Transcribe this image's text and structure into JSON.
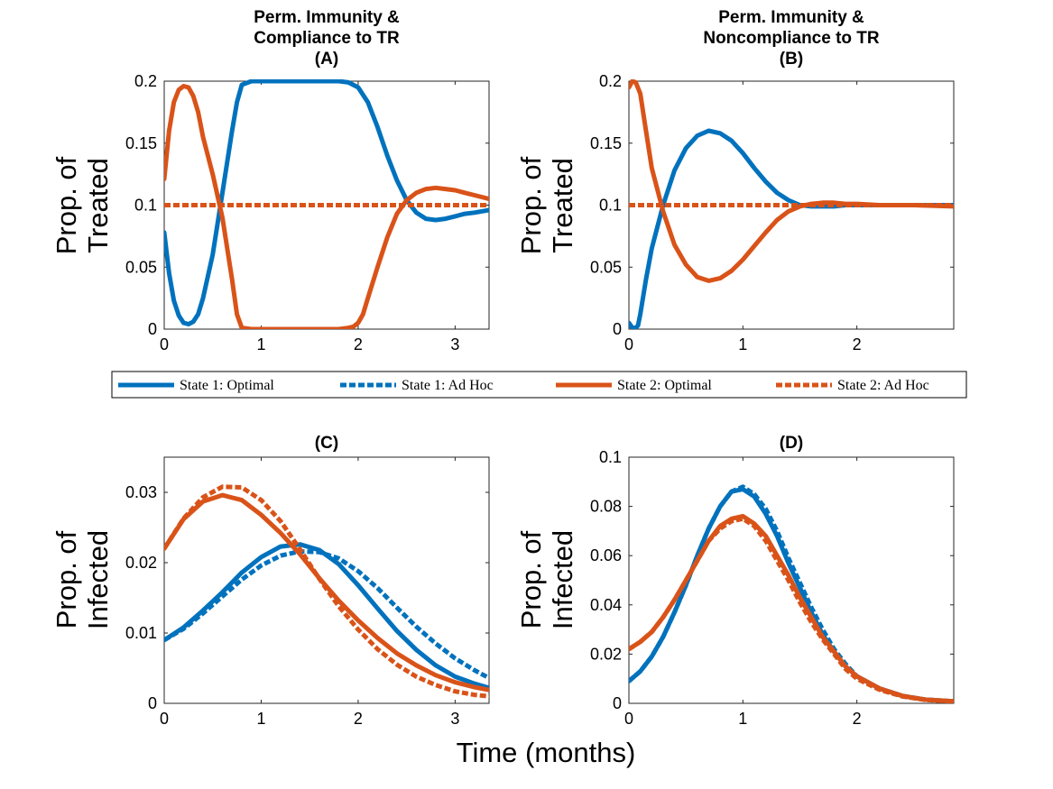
{
  "figure": {
    "xlabel": "Time (months)"
  },
  "legend": {
    "entries": [
      {
        "label": "State 1:  Optimal",
        "color": "#0072BD",
        "dash": false
      },
      {
        "label": "State 1:  Ad Hoc",
        "color": "#0072BD",
        "dash": true
      },
      {
        "label": "State 2:  Optimal",
        "color": "#D95319",
        "dash": false
      },
      {
        "label": "State 2:  Ad Hoc",
        "color": "#D95319",
        "dash": true
      }
    ]
  },
  "chart_data": [
    {
      "id": "A",
      "type": "line",
      "title": [
        "Perm. Immunity &",
        "Compliance to TR",
        "(A)"
      ],
      "ylabel": [
        "Prop. of",
        "Treated"
      ],
      "xlim": [
        0,
        3.35
      ],
      "ylim": [
        0,
        0.2
      ],
      "xticks": [
        0,
        1,
        2,
        3
      ],
      "yticks": [
        0,
        0.05,
        0.1,
        0.15,
        0.2
      ],
      "yticklabels": [
        "0",
        "0.05",
        "0.1",
        "0.15",
        "0.2"
      ],
      "series": [
        {
          "name": "State 1:  Optimal",
          "color": "#0072BD",
          "dash": false,
          "x": [
            0,
            0.05,
            0.1,
            0.15,
            0.2,
            0.25,
            0.3,
            0.35,
            0.4,
            0.5,
            0.6,
            0.7,
            0.75,
            0.8,
            0.9,
            1.0,
            1.5,
            1.8,
            1.9,
            2.0,
            2.1,
            2.2,
            2.3,
            2.4,
            2.5,
            2.6,
            2.7,
            2.8,
            2.9,
            3.0,
            3.1,
            3.2,
            3.35
          ],
          "y": [
            0.078,
            0.045,
            0.023,
            0.011,
            0.005,
            0.004,
            0.006,
            0.012,
            0.025,
            0.06,
            0.11,
            0.16,
            0.183,
            0.197,
            0.2,
            0.2,
            0.2,
            0.2,
            0.199,
            0.195,
            0.183,
            0.163,
            0.14,
            0.12,
            0.104,
            0.094,
            0.089,
            0.088,
            0.089,
            0.091,
            0.093,
            0.094,
            0.096
          ]
        },
        {
          "name": "State 1:  Ad Hoc",
          "color": "#0072BD",
          "dash": true,
          "x": [
            0,
            3.35
          ],
          "y": [
            0.1,
            0.1
          ]
        },
        {
          "name": "State 2:  Optimal",
          "color": "#D95319",
          "dash": false,
          "x": [
            0,
            0.05,
            0.1,
            0.15,
            0.2,
            0.25,
            0.3,
            0.35,
            0.4,
            0.5,
            0.6,
            0.7,
            0.75,
            0.8,
            0.9,
            1.0,
            1.5,
            1.8,
            1.9,
            1.95,
            2.0,
            2.05,
            2.1,
            2.2,
            2.3,
            2.4,
            2.5,
            2.6,
            2.7,
            2.8,
            2.9,
            3.0,
            3.1,
            3.2,
            3.35
          ],
          "y": [
            0.121,
            0.16,
            0.183,
            0.193,
            0.196,
            0.195,
            0.188,
            0.175,
            0.155,
            0.125,
            0.09,
            0.04,
            0.012,
            0.001,
            0,
            0,
            0,
            0,
            0.001,
            0.002,
            0.005,
            0.012,
            0.025,
            0.05,
            0.074,
            0.093,
            0.104,
            0.11,
            0.113,
            0.114,
            0.113,
            0.112,
            0.11,
            0.108,
            0.105
          ]
        },
        {
          "name": "State 2:  Ad Hoc",
          "color": "#D95319",
          "dash": true,
          "x": [
            0,
            3.35
          ],
          "y": [
            0.1,
            0.1
          ]
        }
      ]
    },
    {
      "id": "B",
      "type": "line",
      "title": [
        "Perm. Immunity &",
        "Noncompliance to TR",
        "(B)"
      ],
      "ylabel": [
        "Prop. of",
        "Treated"
      ],
      "xlim": [
        0,
        2.85
      ],
      "ylim": [
        0,
        0.2
      ],
      "xticks": [
        0,
        1,
        2
      ],
      "yticks": [
        0,
        0.05,
        0.1,
        0.15,
        0.2
      ],
      "yticklabels": [
        "0",
        "0.05",
        "0.1",
        "0.15",
        "0.2"
      ],
      "series": [
        {
          "name": "State 1:  Optimal",
          "color": "#0072BD",
          "dash": false,
          "x": [
            0,
            0.03,
            0.06,
            0.08,
            0.1,
            0.15,
            0.2,
            0.3,
            0.4,
            0.5,
            0.6,
            0.7,
            0.8,
            0.9,
            1.0,
            1.1,
            1.2,
            1.3,
            1.4,
            1.5,
            1.6,
            1.7,
            1.8,
            1.9,
            2.0,
            2.2,
            2.5,
            2.85
          ],
          "y": [
            0.005,
            0.001,
            0.001,
            0.003,
            0.012,
            0.04,
            0.065,
            0.1,
            0.128,
            0.146,
            0.156,
            0.16,
            0.158,
            0.152,
            0.142,
            0.13,
            0.119,
            0.11,
            0.104,
            0.1,
            0.099,
            0.099,
            0.099,
            0.1,
            0.1,
            0.1,
            0.1,
            0.1
          ]
        },
        {
          "name": "State 1:  Ad Hoc",
          "color": "#0072BD",
          "dash": true,
          "x": [
            0,
            2.85
          ],
          "y": [
            0.1,
            0.1
          ]
        },
        {
          "name": "State 2:  Optimal",
          "color": "#D95319",
          "dash": false,
          "x": [
            0,
            0.03,
            0.06,
            0.1,
            0.15,
            0.2,
            0.3,
            0.4,
            0.5,
            0.6,
            0.7,
            0.8,
            0.9,
            1.0,
            1.1,
            1.2,
            1.3,
            1.4,
            1.5,
            1.6,
            1.7,
            1.8,
            1.9,
            2.0,
            2.2,
            2.5,
            2.85
          ],
          "y": [
            0.195,
            0.2,
            0.199,
            0.19,
            0.16,
            0.13,
            0.095,
            0.068,
            0.052,
            0.042,
            0.039,
            0.041,
            0.047,
            0.056,
            0.067,
            0.078,
            0.088,
            0.095,
            0.099,
            0.101,
            0.102,
            0.102,
            0.101,
            0.101,
            0.1,
            0.1,
            0.099
          ]
        },
        {
          "name": "State 2:  Ad Hoc",
          "color": "#D95319",
          "dash": true,
          "x": [
            0,
            2.85
          ],
          "y": [
            0.1,
            0.1
          ]
        }
      ]
    },
    {
      "id": "C",
      "type": "line",
      "title": [
        "(C)"
      ],
      "ylabel": [
        "Prop. of",
        "Infected"
      ],
      "xlim": [
        0,
        3.35
      ],
      "ylim": [
        0,
        0.035
      ],
      "xticks": [
        0,
        1,
        2,
        3
      ],
      "yticks": [
        0,
        0.01,
        0.02,
        0.03
      ],
      "yticklabels": [
        "0",
        "0.01",
        "0.02",
        "0.03"
      ],
      "series": [
        {
          "name": "State 1:  Optimal",
          "color": "#0072BD",
          "dash": false,
          "x": [
            0,
            0.2,
            0.4,
            0.6,
            0.8,
            1.0,
            1.2,
            1.4,
            1.6,
            1.8,
            2.0,
            2.2,
            2.4,
            2.6,
            2.8,
            3.0,
            3.2,
            3.35
          ],
          "y": [
            0.009,
            0.0108,
            0.0132,
            0.0158,
            0.0186,
            0.0208,
            0.0223,
            0.0226,
            0.0218,
            0.0198,
            0.0168,
            0.0135,
            0.0103,
            0.0076,
            0.0054,
            0.0038,
            0.0028,
            0.0022
          ]
        },
        {
          "name": "State 1:  Ad Hoc",
          "color": "#0072BD",
          "dash": true,
          "x": [
            0,
            0.2,
            0.4,
            0.6,
            0.8,
            1.0,
            1.2,
            1.4,
            1.6,
            1.8,
            2.0,
            2.2,
            2.4,
            2.6,
            2.8,
            3.0,
            3.2,
            3.35
          ],
          "y": [
            0.009,
            0.0106,
            0.0128,
            0.0152,
            0.0176,
            0.0196,
            0.021,
            0.0216,
            0.0215,
            0.0206,
            0.0188,
            0.0164,
            0.0136,
            0.0109,
            0.0085,
            0.0064,
            0.0047,
            0.0036
          ]
        },
        {
          "name": "State 2:  Optimal",
          "color": "#D95319",
          "dash": false,
          "x": [
            0,
            0.2,
            0.4,
            0.6,
            0.8,
            1.0,
            1.2,
            1.4,
            1.6,
            1.8,
            2.0,
            2.2,
            2.4,
            2.6,
            2.8,
            3.0,
            3.2,
            3.35
          ],
          "y": [
            0.022,
            0.0262,
            0.0287,
            0.0296,
            0.0289,
            0.0268,
            0.0242,
            0.0212,
            0.0178,
            0.0146,
            0.0118,
            0.0093,
            0.0071,
            0.0054,
            0.004,
            0.003,
            0.0023,
            0.0019
          ]
        },
        {
          "name": "State 2:  Ad Hoc",
          "color": "#D95319",
          "dash": true,
          "x": [
            0,
            0.2,
            0.4,
            0.6,
            0.8,
            1.0,
            1.2,
            1.4,
            1.6,
            1.8,
            2.0,
            2.2,
            2.4,
            2.6,
            2.8,
            3.0,
            3.2,
            3.35
          ],
          "y": [
            0.022,
            0.0263,
            0.0293,
            0.0308,
            0.0307,
            0.0289,
            0.0259,
            0.0219,
            0.0177,
            0.0138,
            0.0105,
            0.0077,
            0.0055,
            0.0038,
            0.0026,
            0.0017,
            0.0012,
            0.001
          ]
        }
      ]
    },
    {
      "id": "D",
      "type": "line",
      "title": [
        "(D)"
      ],
      "ylabel": [
        "Prop. of",
        "Infected"
      ],
      "xlim": [
        0,
        2.85
      ],
      "ylim": [
        0,
        0.1
      ],
      "xticks": [
        0,
        1,
        2
      ],
      "yticks": [
        0,
        0.02,
        0.04,
        0.06,
        0.08,
        0.1
      ],
      "yticklabels": [
        "0",
        "0.02",
        "0.04",
        "0.06",
        "0.08",
        "0.1"
      ],
      "series": [
        {
          "name": "State 1:  Optimal",
          "color": "#0072BD",
          "dash": false,
          "x": [
            0,
            0.1,
            0.2,
            0.3,
            0.4,
            0.5,
            0.6,
            0.7,
            0.8,
            0.9,
            1.0,
            1.1,
            1.2,
            1.3,
            1.4,
            1.5,
            1.6,
            1.7,
            1.8,
            1.9,
            2.0,
            2.2,
            2.4,
            2.6,
            2.85
          ],
          "y": [
            0.009,
            0.013,
            0.019,
            0.027,
            0.037,
            0.048,
            0.06,
            0.071,
            0.08,
            0.086,
            0.087,
            0.084,
            0.077,
            0.068,
            0.057,
            0.047,
            0.037,
            0.028,
            0.021,
            0.015,
            0.011,
            0.006,
            0.003,
            0.0015,
            0.0008
          ]
        },
        {
          "name": "State 1:  Ad Hoc",
          "color": "#0072BD",
          "dash": true,
          "x": [
            0,
            0.1,
            0.2,
            0.3,
            0.4,
            0.5,
            0.6,
            0.7,
            0.8,
            0.9,
            1.0,
            1.1,
            1.2,
            1.3,
            1.4,
            1.5,
            1.6,
            1.7,
            1.8,
            1.9,
            2.0,
            2.2,
            2.4,
            2.6,
            2.85
          ],
          "y": [
            0.009,
            0.013,
            0.019,
            0.027,
            0.037,
            0.048,
            0.06,
            0.071,
            0.08,
            0.086,
            0.088,
            0.085,
            0.079,
            0.07,
            0.059,
            0.049,
            0.039,
            0.03,
            0.022,
            0.016,
            0.011,
            0.006,
            0.003,
            0.0015,
            0.0008
          ]
        },
        {
          "name": "State 2:  Optimal",
          "color": "#D95319",
          "dash": false,
          "x": [
            0,
            0.1,
            0.2,
            0.3,
            0.4,
            0.5,
            0.6,
            0.7,
            0.8,
            0.9,
            1.0,
            1.1,
            1.2,
            1.3,
            1.4,
            1.5,
            1.6,
            1.7,
            1.8,
            1.9,
            2.0,
            2.2,
            2.4,
            2.6,
            2.85
          ],
          "y": [
            0.022,
            0.025,
            0.029,
            0.035,
            0.042,
            0.05,
            0.058,
            0.066,
            0.072,
            0.075,
            0.076,
            0.073,
            0.068,
            0.06,
            0.052,
            0.043,
            0.035,
            0.027,
            0.021,
            0.015,
            0.011,
            0.006,
            0.003,
            0.0015,
            0.0008
          ]
        },
        {
          "name": "State 2:  Ad Hoc",
          "color": "#D95319",
          "dash": true,
          "x": [
            0,
            0.1,
            0.2,
            0.3,
            0.4,
            0.5,
            0.6,
            0.7,
            0.8,
            0.9,
            1.0,
            1.1,
            1.2,
            1.3,
            1.4,
            1.5,
            1.6,
            1.7,
            1.8,
            1.9,
            2.0,
            2.2,
            2.4,
            2.6,
            2.85
          ],
          "y": [
            0.022,
            0.025,
            0.029,
            0.035,
            0.042,
            0.05,
            0.058,
            0.066,
            0.071,
            0.074,
            0.075,
            0.072,
            0.066,
            0.058,
            0.05,
            0.041,
            0.033,
            0.026,
            0.02,
            0.014,
            0.01,
            0.0055,
            0.0028,
            0.0014,
            0.0007
          ]
        }
      ]
    }
  ]
}
